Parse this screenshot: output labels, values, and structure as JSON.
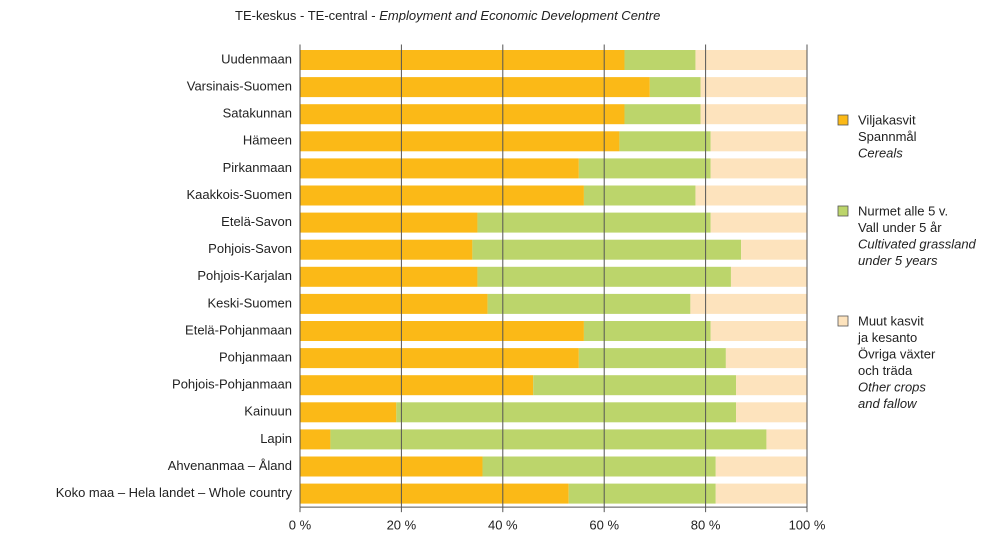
{
  "chart_data": {
    "type": "stacked_barh",
    "title": "TE-keskus - TE-central -",
    "title_en": "Employment and Economic Development Centre",
    "categories": [
      "Uudenmaan",
      "Varsinais-Suomen",
      "Satakunnan",
      "Hämeen",
      "Pirkanmaan",
      "Kaakkois-Suomen",
      "Etelä-Savon",
      "Pohjois-Savon",
      "Pohjois-Karjalan",
      "Keski-Suomen",
      "Etelä-Pohjanmaan",
      "Pohjanmaan",
      "Pohjois-Pohjanmaan",
      "Kainuun",
      "Lapin",
      "Ahvenanmaa – Åland",
      "Koko maa – Hela landet – Whole country"
    ],
    "series": [
      {
        "name": [
          "Viljakasvit",
          "Spannmål"
        ],
        "name_en": [
          "Cereals"
        ],
        "color": "#fbb917",
        "values": [
          64,
          69,
          64,
          63,
          55,
          56,
          35,
          34,
          35,
          37,
          56,
          55,
          46,
          19,
          6,
          36,
          53
        ]
      },
      {
        "name": [
          "Nurmet alle 5 v.",
          "Vall under 5 år"
        ],
        "name_en": [
          "Cultivated grassland",
          "under 5 years"
        ],
        "color": "#bcd56b",
        "values": [
          14,
          10,
          15,
          18,
          26,
          22,
          46,
          53,
          50,
          40,
          25,
          29,
          40,
          67,
          86,
          46,
          29
        ]
      },
      {
        "name": [
          "Muut kasvit",
          "ja kesanto",
          "Övriga växter",
          "och träda"
        ],
        "name_en": [
          "Other crops",
          "and fallow"
        ],
        "color": "#fde3bd",
        "values": [
          22,
          21,
          21,
          19,
          19,
          22,
          19,
          13,
          15,
          23,
          19,
          16,
          14,
          14,
          8,
          18,
          18
        ]
      }
    ],
    "xlim": [
      0,
      100
    ],
    "xticks": [
      {
        "value": 0,
        "label": "0 %"
      },
      {
        "value": 20,
        "label": "20 %"
      },
      {
        "value": 40,
        "label": "40 %"
      },
      {
        "value": 60,
        "label": "60 %"
      },
      {
        "value": 80,
        "label": "80 %"
      },
      {
        "value": 100,
        "label": "100 %"
      }
    ],
    "grid": true
  }
}
